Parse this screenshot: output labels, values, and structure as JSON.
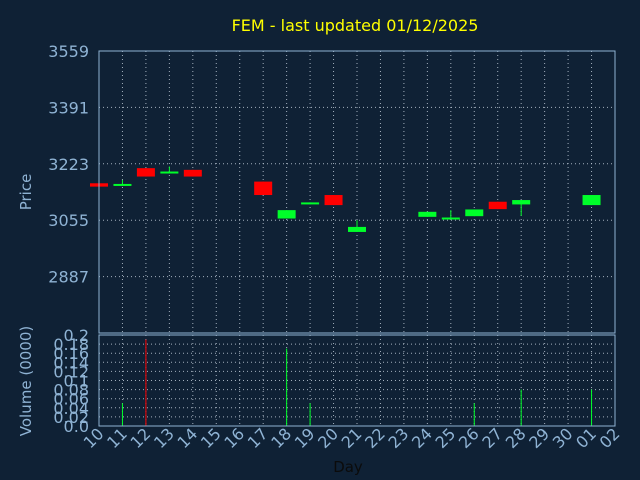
{
  "chart_data": [
    {
      "type": "candlestick",
      "title": "FEM - last updated 01/12/2025",
      "ylabel": "Price",
      "ylim": [
        2719,
        3559
      ],
      "y_ticks": [
        "3559",
        "3391",
        "3223",
        "3055",
        "2887"
      ],
      "grid": true,
      "colors": {
        "up": "#00ff2a",
        "down": "#ff0000",
        "title": "#ffff00",
        "axis_text": "#8fb3d4",
        "background": "#0f2135",
        "grid": "#c8d4e0"
      },
      "x": [
        "10",
        "11",
        "12",
        "13",
        "14",
        "15",
        "16",
        "17",
        "18",
        "19",
        "20",
        "21",
        "22",
        "23",
        "24",
        "25",
        "26",
        "27",
        "28",
        "29",
        "30",
        "01",
        "02"
      ],
      "candles": [
        {
          "day": "10",
          "open": 3165,
          "close": 3155,
          "high": 3165,
          "low": 3155
        },
        {
          "day": "11",
          "open": 3159,
          "close": 3163,
          "high": 3175,
          "low": 3159
        },
        {
          "day": "12",
          "open": 3210,
          "close": 3185,
          "high": 3210,
          "low": 3185
        },
        {
          "day": "13",
          "open": 3195,
          "close": 3200,
          "high": 3215,
          "low": 3195
        },
        {
          "day": "14",
          "open": 3205,
          "close": 3185,
          "high": 3205,
          "low": 3185
        },
        {
          "day": "17",
          "open": 3170,
          "close": 3130,
          "high": 3170,
          "low": 3130
        },
        {
          "day": "18",
          "open": 3060,
          "close": 3085,
          "high": 3085,
          "low": 3060
        },
        {
          "day": "19",
          "open": 3103,
          "close": 3108,
          "high": 3108,
          "low": 3103
        },
        {
          "day": "20",
          "open": 3130,
          "close": 3100,
          "high": 3130,
          "low": 3100
        },
        {
          "day": "21",
          "open": 3020,
          "close": 3035,
          "high": 3055,
          "low": 3020
        },
        {
          "day": "24",
          "open": 3065,
          "close": 3080,
          "high": 3080,
          "low": 3065
        },
        {
          "day": "25",
          "open": 3058,
          "close": 3063,
          "high": 3085,
          "low": 3058
        },
        {
          "day": "26",
          "open": 3067,
          "close": 3087,
          "high": 3087,
          "low": 3067
        },
        {
          "day": "27",
          "open": 3110,
          "close": 3088,
          "high": 3110,
          "low": 3088
        },
        {
          "day": "28",
          "open": 3102,
          "close": 3115,
          "high": 3115,
          "low": 3068
        },
        {
          "day": "01",
          "open": 3100,
          "close": 3130,
          "high": 3130,
          "low": 3100
        }
      ]
    },
    {
      "type": "bar",
      "xlabel": "Day",
      "ylabel": "Volume (0000)",
      "ylim": [
        0,
        0.2
      ],
      "y_ticks": [
        "0.2",
        "0.18",
        "0.16",
        "0.14",
        "0.12",
        "0.1",
        "0.08",
        "0.06",
        "0.04",
        "0.02",
        "0.0"
      ],
      "categories": [
        "10",
        "11",
        "12",
        "13",
        "14",
        "15",
        "16",
        "17",
        "18",
        "19",
        "20",
        "21",
        "22",
        "23",
        "24",
        "25",
        "26",
        "27",
        "28",
        "29",
        "30",
        "01",
        "02"
      ],
      "bars": [
        {
          "day": "11",
          "value": 0.05,
          "color": "up"
        },
        {
          "day": "12",
          "value": 0.19,
          "color": "down"
        },
        {
          "day": "18",
          "value": 0.17,
          "color": "up"
        },
        {
          "day": "19",
          "value": 0.05,
          "color": "up"
        },
        {
          "day": "26",
          "value": 0.05,
          "color": "up"
        },
        {
          "day": "28",
          "value": 0.08,
          "color": "up"
        },
        {
          "day": "01",
          "value": 0.08,
          "color": "up"
        }
      ]
    }
  ]
}
